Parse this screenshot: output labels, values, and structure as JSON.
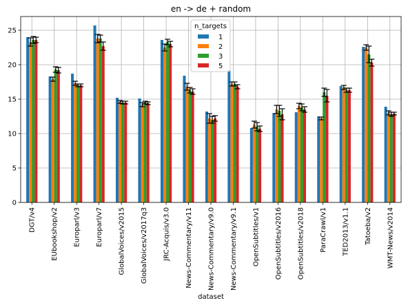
{
  "chart_data": {
    "type": "bar",
    "title": "en -> de + random",
    "xlabel": "dataset",
    "ylabel": "",
    "ylim": [
      0,
      27
    ],
    "yticks": [
      0,
      5,
      10,
      15,
      20,
      25
    ],
    "grid": true,
    "legend": {
      "title": "n_targets",
      "placement": "top-center"
    },
    "categories": [
      "DGT/v4",
      "EUbookshop/v2",
      "Europarl/v3",
      "Europarl/v7",
      "GlobalVoices/v2015",
      "GlobalVoices/v2017q3",
      "JRC-Acquis/v3.0",
      "News-Commentary/v11",
      "News-Commentary/v9.0",
      "News-Commentary/v9.1",
      "OpenSubtitles/v1",
      "OpenSubtitles/v2016",
      "OpenSubtitles/v2018",
      "ParaCrawl/v1",
      "TED2013/v1.1",
      "Tatoeba/v2",
      "WMT-News/v2014"
    ],
    "series": [
      {
        "name": "1",
        "color": "#1f77b4",
        "values": [
          24.0,
          18.3,
          18.7,
          25.7,
          15.2,
          15.1,
          23.6,
          18.4,
          13.2,
          19.2,
          10.8,
          13.0,
          13.1,
          12.5,
          16.9,
          22.6,
          13.9
        ],
        "errors": [
          0,
          0,
          0,
          0,
          0,
          0,
          0,
          0,
          0,
          0,
          0,
          0,
          0,
          0,
          0,
          0,
          0
        ]
      },
      {
        "name": "2",
        "color": "#ff7f0e",
        "values": [
          23.3,
          17.9,
          17.3,
          23.8,
          14.6,
          14.2,
          22.5,
          16.8,
          12.2,
          17.2,
          11.3,
          13.5,
          14.0,
          12.2,
          16.7,
          22.5,
          13.0
        ],
        "errors": [
          0.6,
          0.3,
          0.3,
          0.6,
          0.2,
          0.3,
          0.5,
          0.5,
          0.7,
          0.3,
          0.5,
          0.6,
          0.4,
          0.2,
          0.3,
          0.4,
          0.3
        ]
      },
      {
        "name": "3",
        "color": "#2ca02c",
        "values": [
          23.6,
          19.3,
          17.0,
          23.8,
          14.5,
          14.5,
          23.3,
          16.3,
          12.0,
          17.2,
          11.0,
          13.3,
          13.8,
          16.0,
          16.3,
          21.5,
          12.8
        ],
        "errors": [
          0.5,
          0.4,
          0.2,
          0.5,
          0.2,
          0.2,
          0.4,
          0.4,
          0.5,
          0.3,
          0.6,
          0.8,
          0.5,
          0.6,
          0.3,
          1.2,
          0.3
        ]
      },
      {
        "name": "5",
        "color": "#d62728",
        "values": [
          23.6,
          19.2,
          17.0,
          22.7,
          14.5,
          14.4,
          23.0,
          16.1,
          12.2,
          16.8,
          10.7,
          12.8,
          13.5,
          15.5,
          16.3,
          20.3,
          12.9
        ],
        "errors": [
          0.4,
          0.4,
          0.2,
          0.6,
          0.2,
          0.2,
          0.4,
          0.4,
          0.4,
          0.3,
          0.4,
          0.8,
          0.4,
          0.9,
          0.3,
          0.5,
          0.2
        ]
      }
    ]
  }
}
